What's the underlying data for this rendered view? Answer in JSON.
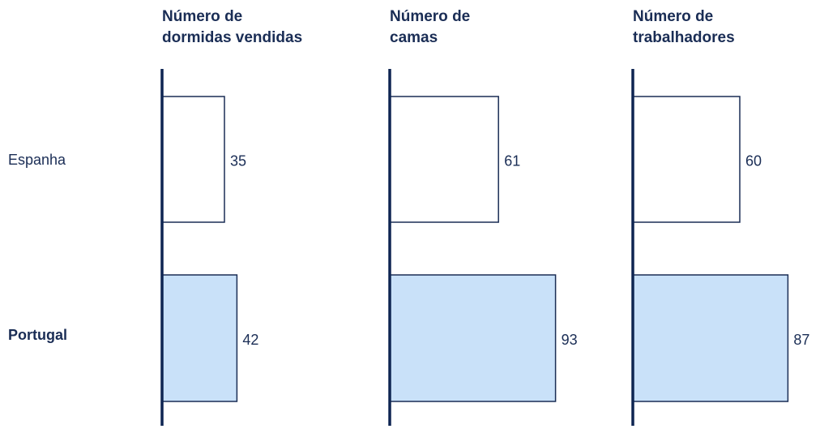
{
  "chart_data": [
    {
      "type": "bar",
      "title": "Número de dormidas vendidas",
      "categories": [
        "Espanha",
        "Portugal"
      ],
      "values": [
        35,
        42
      ],
      "colors": [
        "#ffffff",
        "#c9e1f9"
      ],
      "xlim": [
        0,
        100
      ]
    },
    {
      "type": "bar",
      "title": "Número de camas",
      "categories": [
        "Espanha",
        "Portugal"
      ],
      "values": [
        61,
        93
      ],
      "colors": [
        "#ffffff",
        "#c9e1f9"
      ],
      "xlim": [
        0,
        100
      ]
    },
    {
      "type": "bar",
      "title": "Número de trabalhadores",
      "categories": [
        "Espanha",
        "Portugal"
      ],
      "values": [
        60,
        87
      ],
      "colors": [
        "#ffffff",
        "#c9e1f9"
      ],
      "xlim": [
        0,
        100
      ]
    }
  ]
}
